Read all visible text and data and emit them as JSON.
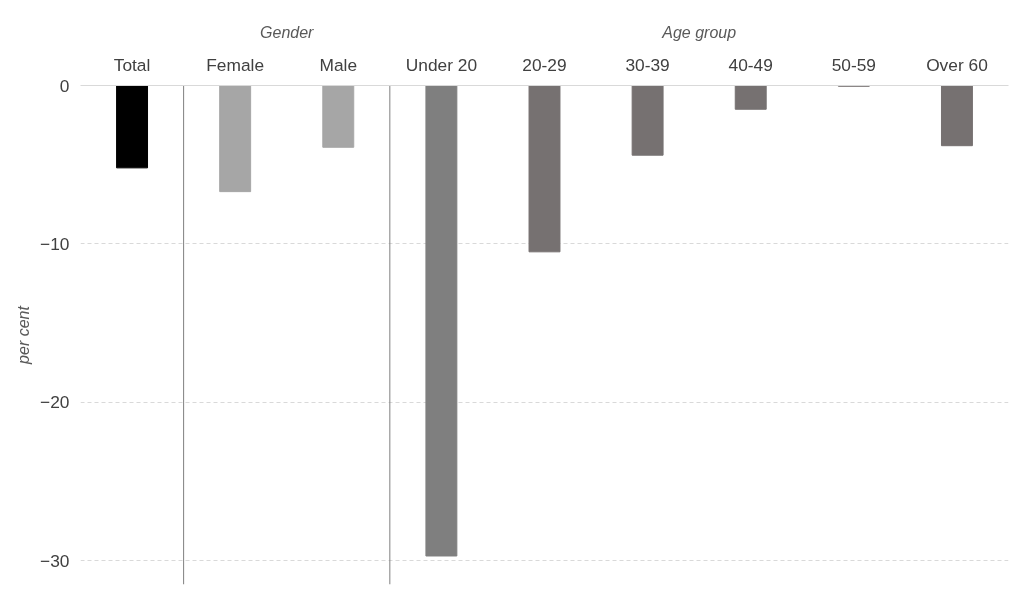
{
  "chart_data": {
    "type": "bar",
    "ylabel": "per cent",
    "categories": [
      "Total",
      "Female",
      "Male",
      "Under 20",
      "20-29",
      "30-39",
      "40-49",
      "50-59",
      "Over 60"
    ],
    "values": [
      -5.2,
      -6.7,
      -3.9,
      -29.7,
      -10.5,
      -4.4,
      -1.5,
      -0.05,
      -3.8
    ],
    "colors": [
      "#000000",
      "#a6a6a6",
      "#a6a6a6",
      "#7f7f7f",
      "#767171",
      "#767171",
      "#767171",
      "#767171",
      "#767171"
    ],
    "ylim": [
      -31.5,
      0
    ],
    "yticks": [
      -30,
      -20,
      -10,
      0
    ],
    "grid": "y",
    "annotations": [
      "Gender",
      "Age group"
    ]
  }
}
